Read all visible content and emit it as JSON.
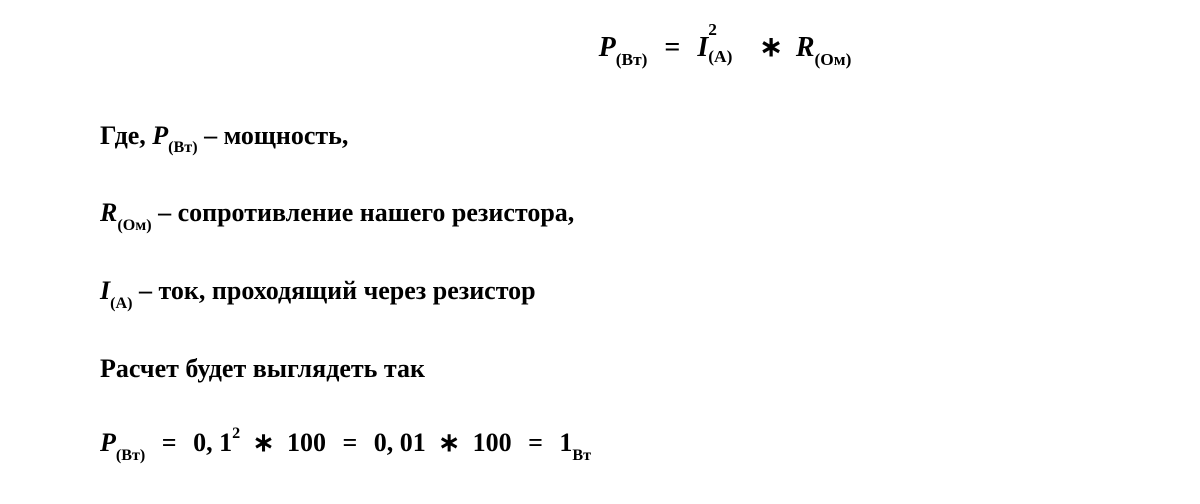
{
  "colors": {
    "background": "#ffffff",
    "text": "#000000"
  },
  "typography": {
    "font_family": "Georgia, 'Times New Roman', serif",
    "base_fontsize": 26,
    "formula_fontsize": 28,
    "sub_scale": 0.62
  },
  "formula": {
    "P": "P",
    "P_sub": "(Вт)",
    "eq": "=",
    "I": "I",
    "I_sup": "2",
    "I_sub": "(А)",
    "mult": "∗",
    "R": "R",
    "R_sub": "(Ом)"
  },
  "line1": {
    "prefix": "Где, ",
    "P": "P",
    "P_sub": "(Вт)",
    "dash": " – ",
    "desc": "мощность,"
  },
  "line2": {
    "R": "R",
    "R_sub": "(Ом)",
    "dash": " – ",
    "desc": "сопротивление нашего резистора,"
  },
  "line3": {
    "I": "I",
    "I_sub": "(А)",
    "dash": " – ",
    "desc": "ток, проходящий через резистор"
  },
  "line4": {
    "text": "Расчет будет выглядеть так"
  },
  "calc": {
    "P": "P",
    "P_sub": "(Вт)",
    "eq1": "=",
    "v1": "0, 1",
    "v1_sup": "2",
    "mult1": "∗",
    "v2": "100",
    "eq2": "=",
    "v3": "0, 01",
    "mult2": "∗",
    "v4": "100",
    "eq3": "=",
    "v5": "1",
    "v5_sub": "Вт"
  }
}
